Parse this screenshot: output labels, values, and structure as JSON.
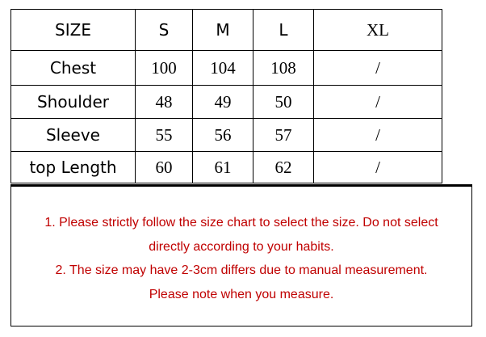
{
  "table": {
    "header": [
      "SIZE",
      "S",
      "M",
      "L",
      "XL"
    ],
    "rows": [
      [
        "Chest",
        "100",
        "104",
        "108",
        "/"
      ],
      [
        "Shoulder",
        "48",
        "49",
        "50",
        "/"
      ],
      [
        "Sleeve",
        "55",
        "56",
        "57",
        "/"
      ],
      [
        "top Length",
        "60",
        "61",
        "62",
        "/"
      ]
    ]
  },
  "notes": {
    "lines": [
      "1. Please strictly follow the size chart  to select the size. Do not select",
      "directly according to your habits.",
      "2. The size may have 2-3cm differs due to manual measurement.",
      "Please note when you measure."
    ],
    "color": "#c00000"
  }
}
